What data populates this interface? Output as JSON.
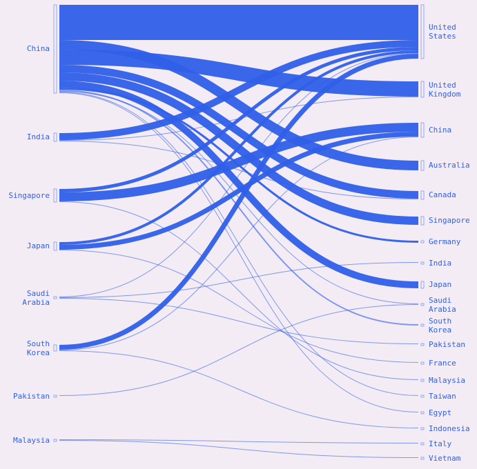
{
  "chart_data": {
    "type": "sankey",
    "color": "#2f5fe8",
    "sources": [
      "China",
      "India",
      "Singapore",
      "Japan",
      "Saudi Arabia",
      "South Korea",
      "Pakistan",
      "Malaysia"
    ],
    "targets": [
      "United States",
      "United Kingdom",
      "China",
      "Australia",
      "Canada",
      "Singapore",
      "Germany",
      "India",
      "Japan",
      "Saudi Arabia",
      "South Korea",
      "Pakistan",
      "France",
      "Malaysia",
      "Taiwan",
      "Egypt",
      "Indonesia",
      "Italy",
      "Vietnam"
    ],
    "links": [
      {
        "source": 0,
        "target": 0,
        "value": 51
      },
      {
        "source": 0,
        "target": 3,
        "value": 14
      },
      {
        "source": 0,
        "target": 1,
        "value": 22
      },
      {
        "source": 0,
        "target": 4,
        "value": 11
      },
      {
        "source": 0,
        "target": 5,
        "value": 12
      },
      {
        "source": 0,
        "target": 8,
        "value": 10
      },
      {
        "source": 0,
        "target": 6,
        "value": 3
      },
      {
        "source": 0,
        "target": 10,
        "value": 2
      },
      {
        "source": 0,
        "target": 9,
        "value": 1
      },
      {
        "source": 0,
        "target": 14,
        "value": 1
      },
      {
        "source": 0,
        "target": 15,
        "value": 1
      },
      {
        "source": 1,
        "target": 0,
        "value": 10
      },
      {
        "source": 1,
        "target": 1,
        "value": 1
      },
      {
        "source": 1,
        "target": 4,
        "value": 1
      },
      {
        "source": 2,
        "target": 0,
        "value": 5
      },
      {
        "source": 2,
        "target": 2,
        "value": 13
      },
      {
        "source": 2,
        "target": 13,
        "value": 1
      },
      {
        "source": 3,
        "target": 0,
        "value": 4
      },
      {
        "source": 3,
        "target": 2,
        "value": 7
      },
      {
        "source": 3,
        "target": 12,
        "value": 1
      },
      {
        "source": 4,
        "target": 0,
        "value": 1
      },
      {
        "source": 4,
        "target": 7,
        "value": 1
      },
      {
        "source": 4,
        "target": 11,
        "value": 1
      },
      {
        "source": 5,
        "target": 0,
        "value": 7
      },
      {
        "source": 5,
        "target": 2,
        "value": 1
      },
      {
        "source": 5,
        "target": 16,
        "value": 1
      },
      {
        "source": 6,
        "target": 9,
        "value": 1
      },
      {
        "source": 7,
        "target": 17,
        "value": 1
      },
      {
        "source": 7,
        "target": 18,
        "value": 1
      }
    ]
  }
}
